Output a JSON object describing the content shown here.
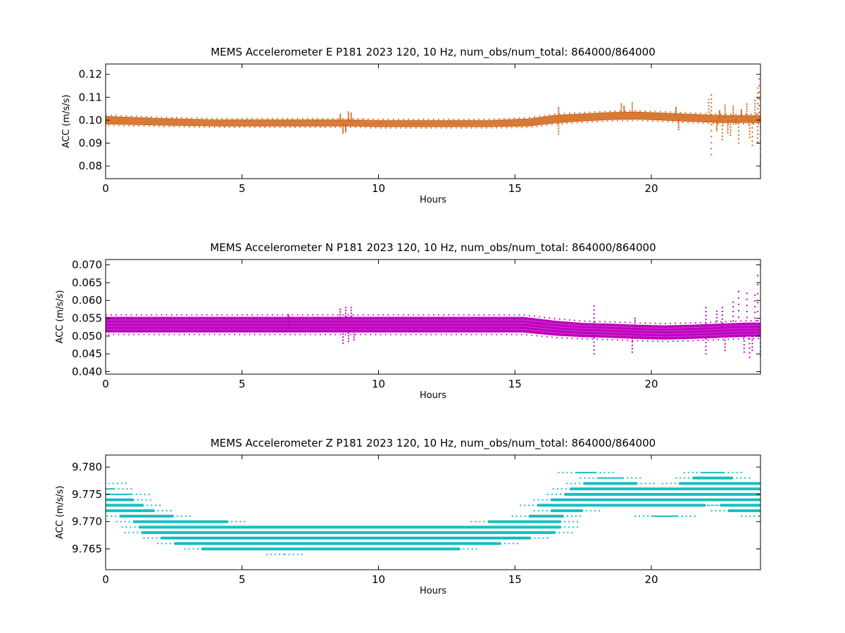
{
  "figure": {
    "background": "#ffffff"
  },
  "chart_data": [
    {
      "type": "scatter",
      "title": "MEMS Accelerometer E P181 2023 120, 10 Hz, num_obs/num_total: 864000/864000",
      "xlabel": "Hours",
      "ylabel": "ACC (m/s/s)",
      "xlim": [
        0,
        24
      ],
      "ylim": [
        0.0745,
        0.1245
      ],
      "xticks": [
        0,
        5,
        10,
        15,
        20
      ],
      "xtick_labels": [
        "0",
        "5",
        "10",
        "15",
        "20"
      ],
      "yticks": [
        0.08,
        0.09,
        0.1,
        0.11,
        0.12
      ],
      "ytick_labels": [
        "0.08",
        "0.09",
        "0.10",
        "0.11",
        "0.12"
      ],
      "color": "#d2691e",
      "grid": false,
      "band": {
        "x": [
          0,
          2,
          4,
          6,
          8,
          9,
          10,
          12,
          14,
          15.5,
          16.5,
          17.5,
          18.5,
          19.5,
          20.5,
          21.5,
          22.5,
          23.5,
          24
        ],
        "center": [
          0.1,
          0.0993,
          0.0988,
          0.0988,
          0.0988,
          0.0988,
          0.0985,
          0.0985,
          0.0985,
          0.099,
          0.1005,
          0.1012,
          0.1018,
          0.102,
          0.1015,
          0.101,
          0.1005,
          0.1005,
          0.1005
        ],
        "halfwidth": [
          0.0018,
          0.0016,
          0.0015,
          0.0015,
          0.0015,
          0.0015,
          0.0015,
          0.0015,
          0.0015,
          0.0017,
          0.0018,
          0.0017,
          0.0017,
          0.0017,
          0.0017,
          0.0017,
          0.0017,
          0.0017,
          0.0017
        ]
      },
      "outliers": [
        [
          8.7,
          0.0945
        ],
        [
          8.8,
          0.095
        ],
        [
          8.9,
          0.1035
        ],
        [
          9.0,
          0.103
        ],
        [
          8.6,
          0.1025
        ],
        [
          16.6,
          0.1055
        ],
        [
          16.6,
          0.094
        ],
        [
          18.9,
          0.107
        ],
        [
          19.3,
          0.1075
        ],
        [
          19.0,
          0.106
        ],
        [
          20.9,
          0.1055
        ],
        [
          21.0,
          0.096
        ],
        [
          22.1,
          0.109
        ],
        [
          22.2,
          0.085
        ],
        [
          22.2,
          0.111
        ],
        [
          22.5,
          0.104
        ],
        [
          22.6,
          0.0915
        ],
        [
          22.9,
          0.0935
        ],
        [
          23.0,
          0.106
        ],
        [
          23.2,
          0.09
        ],
        [
          23.5,
          0.107
        ],
        [
          23.7,
          0.089
        ],
        [
          23.8,
          0.1085
        ],
        [
          23.9,
          0.114
        ],
        [
          23.95,
          0.118
        ],
        [
          24.0,
          0.081
        ],
        [
          23.9,
          0.0905
        ],
        [
          23.6,
          0.0925
        ],
        [
          23.3,
          0.1045
        ],
        [
          22.8,
          0.0945
        ],
        [
          22.4,
          0.0955
        ],
        [
          22.7,
          0.1065
        ],
        [
          23.1,
          0.0985
        ]
      ]
    },
    {
      "type": "scatter",
      "title": "MEMS Accelerometer N P181 2023 120, 10 Hz, num_obs/num_total: 864000/864000",
      "xlabel": "Hours",
      "ylabel": "ACC (m/s/s)",
      "xlim": [
        0,
        24
      ],
      "ylim": [
        0.0393,
        0.0715
      ],
      "xticks": [
        0,
        5,
        10,
        15,
        20
      ],
      "xtick_labels": [
        "0",
        "5",
        "10",
        "15",
        "20"
      ],
      "yticks": [
        0.04,
        0.045,
        0.05,
        0.055,
        0.06,
        0.065,
        0.07
      ],
      "ytick_labels": [
        "0.040",
        "0.045",
        "0.050",
        "0.055",
        "0.060",
        "0.065",
        "0.070"
      ],
      "color": "#bf00bf",
      "grid": false,
      "band": {
        "x": [
          0,
          4,
          8,
          12,
          15.3,
          16.5,
          17.5,
          18.5,
          19.5,
          20.5,
          21.5,
          22.5,
          23.5,
          24
        ],
        "center": [
          0.0532,
          0.0532,
          0.0532,
          0.0532,
          0.0532,
          0.0522,
          0.0517,
          0.0515,
          0.0512,
          0.051,
          0.0512,
          0.0515,
          0.0518,
          0.0518
        ],
        "halfwidth": [
          0.0022,
          0.0022,
          0.0022,
          0.0022,
          0.0022,
          0.0021,
          0.002,
          0.002,
          0.002,
          0.002,
          0.002,
          0.002,
          0.002,
          0.002
        ]
      },
      "outliers": [
        [
          6.7,
          0.056
        ],
        [
          8.6,
          0.0575
        ],
        [
          8.8,
          0.058
        ],
        [
          9.0,
          0.058
        ],
        [
          8.7,
          0.048
        ],
        [
          8.9,
          0.0485
        ],
        [
          9.1,
          0.049
        ],
        [
          17.9,
          0.0585
        ],
        [
          17.9,
          0.045
        ],
        [
          19.3,
          0.0455
        ],
        [
          19.4,
          0.055
        ],
        [
          22.0,
          0.058
        ],
        [
          22.0,
          0.045
        ],
        [
          22.6,
          0.058
        ],
        [
          22.7,
          0.046
        ],
        [
          23.0,
          0.0595
        ],
        [
          23.2,
          0.0625
        ],
        [
          23.5,
          0.062
        ],
        [
          23.6,
          0.044
        ],
        [
          23.8,
          0.0615
        ],
        [
          23.9,
          0.067
        ],
        [
          24.0,
          0.0445
        ],
        [
          23.4,
          0.0455
        ],
        [
          22.4,
          0.057
        ],
        [
          23.7,
          0.046
        ]
      ]
    },
    {
      "type": "scatter",
      "title": "MEMS Accelerometer Z P181 2023 120, 10 Hz, num_obs/num_total: 864000/864000",
      "xlabel": "Hours",
      "ylabel": "ACC (m/s/s)",
      "xlim": [
        0,
        24
      ],
      "ylim": [
        9.7612,
        9.7822
      ],
      "xticks": [
        0,
        5,
        10,
        15,
        20
      ],
      "xtick_labels": [
        "0",
        "5",
        "10",
        "15",
        "20"
      ],
      "yticks": [
        9.765,
        9.77,
        9.775,
        9.78
      ],
      "ytick_labels": [
        "9.765",
        "9.770",
        "9.775",
        "9.780"
      ],
      "color": "#17bebe",
      "grid": false,
      "quantization": 0.001,
      "level_segments": [
        [
          9.777,
          0.1,
          0.15
        ],
        [
          9.776,
          0.0,
          0.35
        ],
        [
          9.775,
          0.0,
          1.0
        ],
        [
          9.774,
          0.0,
          1.05
        ],
        [
          9.773,
          0.0,
          1.4
        ],
        [
          9.772,
          0.0,
          1.8
        ],
        [
          9.771,
          0.5,
          2.5
        ],
        [
          9.77,
          1.0,
          4.5
        ],
        [
          9.769,
          1.2,
          16.7
        ],
        [
          9.768,
          1.3,
          16.5
        ],
        [
          9.767,
          2.0,
          15.6
        ],
        [
          9.766,
          2.5,
          14.5
        ],
        [
          9.765,
          3.5,
          13.0
        ],
        [
          9.764,
          6.5,
          6.6
        ],
        [
          9.77,
          14.0,
          16.7
        ],
        [
          9.771,
          15.5,
          16.8
        ],
        [
          9.772,
          16.3,
          17.5
        ],
        [
          9.773,
          15.8,
          22.0
        ],
        [
          9.774,
          16.3,
          24.0
        ],
        [
          9.775,
          16.8,
          24.0
        ],
        [
          9.776,
          17.0,
          24.0
        ],
        [
          9.777,
          17.5,
          19.5
        ],
        [
          9.778,
          18.0,
          19.0
        ],
        [
          9.779,
          17.2,
          18.0
        ],
        [
          9.777,
          21.0,
          24.0
        ],
        [
          9.778,
          21.5,
          23.0
        ],
        [
          9.779,
          21.8,
          22.7
        ],
        [
          9.773,
          22.5,
          24.0
        ],
        [
          9.772,
          22.8,
          24.0
        ],
        [
          9.771,
          20.0,
          21.0
        ],
        [
          9.771,
          23.9,
          24.0
        ],
        [
          9.776,
          20.7,
          21.5
        ]
      ]
    }
  ]
}
